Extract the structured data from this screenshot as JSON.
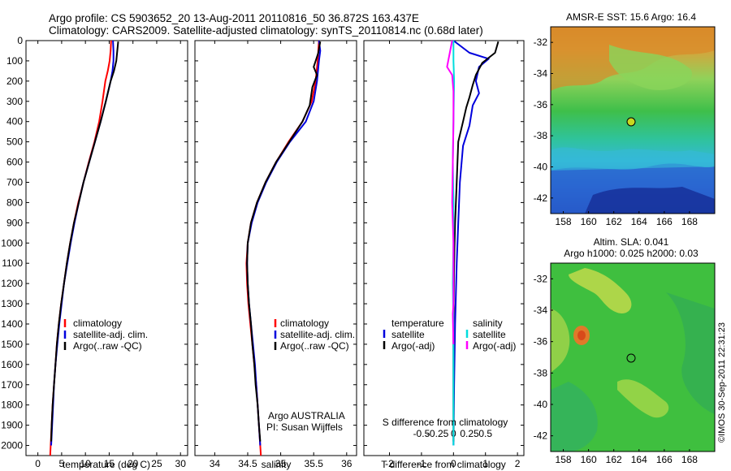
{
  "header": {
    "line1": "Argo profile: CS 5903652_20 13-Aug-2011 20110816_50 36.872S 163.437E",
    "line2": "Climatology: CARS2009. Satellite-adjusted climatology: synTS_20110814.nc (0.68d later)"
  },
  "side_stamp": "©IMOS 30-Sep-2011 22:31:23",
  "colors": {
    "climatology": "#ff0000",
    "satellite": "#0000dd",
    "argo": "#000000",
    "salinity_satellite": "#00dddd",
    "salinity_argo": "#ff00ff"
  },
  "chart_data": [
    {
      "type": "line",
      "name": "temperature",
      "xlabel": "temperature (deg C)",
      "ylabel": "",
      "xlim": [
        -2.5,
        31.5
      ],
      "ylim": [
        2050,
        0
      ],
      "xticks": [
        0,
        5,
        10,
        15,
        20,
        25,
        30
      ],
      "yticks": [
        0,
        100,
        200,
        300,
        400,
        500,
        600,
        700,
        800,
        900,
        1000,
        1100,
        1200,
        1300,
        1400,
        1500,
        1600,
        1700,
        1800,
        1900,
        2000
      ],
      "legend": [
        "climatology",
        "satellite-adj. clim.",
        "Argo(..raw -QC)"
      ],
      "series": [
        {
          "name": "climatology",
          "color": "#ff0000",
          "points": [
            [
              15.4,
              0
            ],
            [
              15.3,
              50
            ],
            [
              15.1,
              100
            ],
            [
              14.7,
              150
            ],
            [
              14.2,
              200
            ],
            [
              13.6,
              300
            ],
            [
              12.9,
              400
            ],
            [
              11.9,
              500
            ],
            [
              10.7,
              600
            ],
            [
              9.6,
              700
            ],
            [
              8.5,
              800
            ],
            [
              7.6,
              900
            ],
            [
              6.8,
              1000
            ],
            [
              6.1,
              1100
            ],
            [
              5.5,
              1200
            ],
            [
              4.9,
              1300
            ],
            [
              4.4,
              1400
            ],
            [
              4.0,
              1500
            ],
            [
              3.7,
              1600
            ],
            [
              3.4,
              1700
            ],
            [
              3.1,
              1800
            ],
            [
              2.9,
              1900
            ],
            [
              2.7,
              2000
            ],
            [
              2.6,
              2050
            ]
          ]
        },
        {
          "name": "satellite-adj. clim.",
          "color": "#0000dd",
          "points": [
            [
              15.8,
              0
            ],
            [
              15.9,
              50
            ],
            [
              15.9,
              100
            ],
            [
              15.7,
              150
            ],
            [
              15.3,
              200
            ],
            [
              14.3,
              300
            ],
            [
              13.2,
              400
            ],
            [
              12.0,
              500
            ],
            [
              10.8,
              600
            ],
            [
              9.6,
              700
            ],
            [
              8.6,
              800
            ],
            [
              7.7,
              900
            ],
            [
              6.9,
              1000
            ],
            [
              6.2,
              1100
            ],
            [
              5.5,
              1200
            ],
            [
              5.0,
              1300
            ],
            [
              4.5,
              1400
            ],
            [
              4.1,
              1500
            ],
            [
              3.7,
              1600
            ],
            [
              3.4,
              1700
            ],
            [
              3.2,
              1800
            ],
            [
              3.0,
              1900
            ],
            [
              2.8,
              2000
            ]
          ]
        },
        {
          "name": "Argo(..raw -QC)",
          "color": "#000000",
          "points": [
            [
              16.9,
              5
            ],
            [
              16.7,
              50
            ],
            [
              16.5,
              100
            ],
            [
              16.0,
              150
            ],
            [
              15.3,
              200
            ],
            [
              14.3,
              300
            ],
            [
              13.2,
              400
            ],
            [
              12.0,
              500
            ],
            [
              10.8,
              600
            ],
            [
              9.6,
              700
            ],
            [
              8.6,
              800
            ],
            [
              7.6,
              900
            ],
            [
              6.8,
              1000
            ],
            [
              6.1,
              1100
            ],
            [
              5.5,
              1200
            ],
            [
              4.9,
              1300
            ],
            [
              4.4,
              1400
            ],
            [
              4.0,
              1500
            ],
            [
              3.7,
              1600
            ],
            [
              3.4,
              1700
            ],
            [
              3.1,
              1800
            ],
            [
              2.9,
              1900
            ],
            [
              2.8,
              1980
            ]
          ]
        }
      ]
    },
    {
      "type": "line",
      "name": "salinity",
      "xlabel": "salinity",
      "ylabel": "",
      "xlim": [
        33.7,
        36.15
      ],
      "ylim": [
        2050,
        0
      ],
      "xticks": [
        34,
        34.5,
        35,
        35.5,
        36
      ],
      "legend": [
        "climatology",
        "satellite-adj. clim.",
        "Argo(..raw -QC)"
      ],
      "annotation": [
        "Argo AUSTRALIA",
        "PI: Susan Wijffels"
      ],
      "series": [
        {
          "name": "climatology",
          "color": "#ff0000",
          "points": [
            [
              35.58,
              0
            ],
            [
              35.56,
              100
            ],
            [
              35.53,
              200
            ],
            [
              35.47,
              300
            ],
            [
              35.33,
              400
            ],
            [
              35.12,
              500
            ],
            [
              34.93,
              600
            ],
            [
              34.77,
              700
            ],
            [
              34.64,
              800
            ],
            [
              34.55,
              900
            ],
            [
              34.5,
              1000
            ],
            [
              34.48,
              1100
            ],
            [
              34.49,
              1200
            ],
            [
              34.51,
              1300
            ],
            [
              34.54,
              1400
            ],
            [
              34.57,
              1500
            ],
            [
              34.6,
              1600
            ],
            [
              34.63,
              1700
            ],
            [
              34.65,
              1800
            ],
            [
              34.67,
              1900
            ],
            [
              34.69,
              2000
            ],
            [
              34.7,
              2050
            ]
          ]
        },
        {
          "name": "satellite-adj. clim.",
          "color": "#0000dd",
          "points": [
            [
              35.58,
              0
            ],
            [
              35.6,
              50
            ],
            [
              35.58,
              100
            ],
            [
              35.55,
              200
            ],
            [
              35.5,
              300
            ],
            [
              35.38,
              400
            ],
            [
              35.14,
              500
            ],
            [
              34.94,
              600
            ],
            [
              34.78,
              700
            ],
            [
              34.65,
              800
            ],
            [
              34.56,
              900
            ],
            [
              34.5,
              1000
            ],
            [
              34.49,
              1100
            ],
            [
              34.5,
              1200
            ],
            [
              34.52,
              1300
            ],
            [
              34.55,
              1400
            ],
            [
              34.58,
              1500
            ],
            [
              34.61,
              1600
            ],
            [
              34.63,
              1700
            ],
            [
              34.65,
              1800
            ],
            [
              34.67,
              1900
            ],
            [
              34.69,
              2000
            ]
          ]
        },
        {
          "name": "Argo(..raw -QC)",
          "color": "#000000",
          "points": [
            [
              35.6,
              5
            ],
            [
              35.57,
              60
            ],
            [
              35.5,
              130
            ],
            [
              35.55,
              170
            ],
            [
              35.48,
              230
            ],
            [
              35.44,
              320
            ],
            [
              35.33,
              400
            ],
            [
              35.13,
              500
            ],
            [
              34.93,
              600
            ],
            [
              34.77,
              700
            ],
            [
              34.64,
              800
            ],
            [
              34.55,
              900
            ],
            [
              34.5,
              1000
            ],
            [
              34.49,
              1100
            ],
            [
              34.5,
              1200
            ],
            [
              34.52,
              1300
            ],
            [
              34.55,
              1400
            ],
            [
              34.57,
              1500
            ],
            [
              34.6,
              1600
            ],
            [
              34.62,
              1700
            ],
            [
              34.65,
              1800
            ],
            [
              34.67,
              1900
            ],
            [
              34.69,
              1980
            ]
          ]
        }
      ]
    },
    {
      "type": "line",
      "name": "difference",
      "xlabel": "T difference from climatology",
      "xlabel_top": "S difference from climatology",
      "xlim": [
        -2.8,
        2.2
      ],
      "ylim": [
        2050,
        0
      ],
      "xticks": [
        -2,
        -1,
        0,
        1,
        2
      ],
      "xticks_s": [
        {
          "value": -0.5,
          "label": "-0.5"
        },
        {
          "value": -0.25,
          "label": "-0.25"
        },
        {
          "value": 0,
          "label": "0"
        },
        {
          "value": 0.25,
          "label": "0.25"
        },
        {
          "value": 0.5,
          "label": "0.5"
        }
      ],
      "s_scale": 2.0,
      "legend_groups": [
        {
          "title": "temperature",
          "items": [
            "satellite",
            "Argo(-adj)"
          ]
        },
        {
          "title": "salinity",
          "items": [
            "satellite",
            "Argo(-adj)"
          ]
        }
      ],
      "series": [
        {
          "name": "temperature satellite",
          "color": "#0000dd",
          "points": [
            [
              0,
              0
            ],
            [
              0.5,
              60
            ],
            [
              1.1,
              90
            ],
            [
              0.8,
              130
            ],
            [
              0.7,
              200
            ],
            [
              0.8,
              260
            ],
            [
              0.6,
              320
            ],
            [
              0.5,
              420
            ],
            [
              0.3,
              520
            ],
            [
              0.2,
              700
            ],
            [
              0.15,
              900
            ],
            [
              0.1,
              1100
            ],
            [
              0.05,
              1400
            ],
            [
              0.02,
              1700
            ],
            [
              0.0,
              2000
            ]
          ]
        },
        {
          "name": "temperature Argo(-adj)",
          "color": "#000000",
          "points": [
            [
              1.4,
              5
            ],
            [
              1.3,
              60
            ],
            [
              0.9,
              110
            ],
            [
              0.7,
              170
            ],
            [
              0.6,
              220
            ],
            [
              0.5,
              280
            ],
            [
              0.4,
              330
            ],
            [
              0.3,
              400
            ],
            [
              0.15,
              500
            ],
            [
              0.1,
              700
            ],
            [
              0.05,
              900
            ],
            [
              0.02,
              1100
            ],
            [
              0.0,
              1400
            ],
            [
              0.0,
              1700
            ],
            [
              0.0,
              1980
            ]
          ]
        },
        {
          "name": "salinity satellite",
          "color": "#00dddd",
          "points": [
            [
              0,
              0
            ],
            [
              0,
              100
            ],
            [
              0.01,
              200
            ],
            [
              0.0,
              400
            ],
            [
              -0.01,
              600
            ],
            [
              0.0,
              800
            ],
            [
              0.0,
              1000
            ],
            [
              -0.01,
              1200
            ],
            [
              0.0,
              1400
            ],
            [
              0.0,
              1600
            ],
            [
              0.0,
              1800
            ],
            [
              0.0,
              2000
            ]
          ]
        },
        {
          "name": "salinity Argo(-adj)",
          "color": "#ff00ff",
          "points": [
            [
              -0.02,
              0
            ],
            [
              -0.1,
              130
            ],
            [
              -0.02,
              170
            ],
            [
              0.0,
              250
            ],
            [
              0.0,
              400
            ],
            [
              -0.01,
              600
            ],
            [
              -0.02,
              800
            ],
            [
              0.0,
              1000
            ],
            [
              0.0,
              1300
            ],
            [
              -0.01,
              1350
            ],
            [
              0.0,
              1500
            ]
          ]
        }
      ]
    },
    {
      "type": "heatmap",
      "name": "sst map",
      "title": "AMSR-E SST: 15.6 Argo: 16.4",
      "xlim": [
        157,
        170
      ],
      "ylim": [
        -43,
        -31
      ],
      "xticks": [
        158,
        160,
        162,
        164,
        166,
        168
      ],
      "yticks": [
        -32,
        -34,
        -36,
        -38,
        -40,
        -42
      ],
      "argo_position": {
        "lon": 163.437,
        "lat": -36.872
      }
    },
    {
      "type": "heatmap",
      "name": "sla map",
      "title_lines": [
        "Altim. SLA: 0.041",
        "Argo h1000: 0.025 h2000: 0.03"
      ],
      "xlim": [
        157,
        170
      ],
      "ylim": [
        -43,
        -31
      ],
      "xticks": [
        158,
        160,
        162,
        164,
        166,
        168
      ],
      "yticks": [
        -32,
        -34,
        -36,
        -38,
        -40,
        -42
      ],
      "argo_position": {
        "lon": 163.437,
        "lat": -36.872
      }
    }
  ]
}
